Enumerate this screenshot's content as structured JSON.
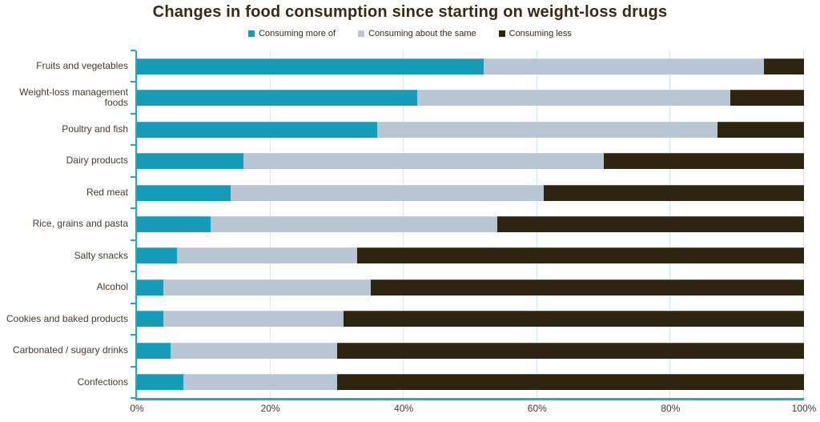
{
  "title": "Changes in food consumption since starting on weight-loss drugs",
  "legend": [
    {
      "label": "Consuming more of",
      "color": "#159cb8"
    },
    {
      "label": "Consuming about the same",
      "color": "#b7c5d4"
    },
    {
      "label": "Consuming less",
      "color": "#2e2410"
    }
  ],
  "colors": {
    "more": "#159cb8",
    "same": "#b7c5d4",
    "less": "#2e2410",
    "axis": "#1ea9c4",
    "gridline": "#c9ecf4",
    "text": "#3a2a12"
  },
  "chart_data": {
    "type": "bar",
    "orientation": "horizontal",
    "stacked": true,
    "title": "Changes in food consumption since starting on weight-loss drugs",
    "categories": [
      "Fruits and vegetables",
      "Weight-loss management foods",
      "Poultry and fish",
      "Dairy products",
      "Red meat",
      "Rice, grains and pasta",
      "Salty snacks",
      "Alcohol",
      "Cookies and baked products",
      "Carbonated / sugary drinks",
      "Confections"
    ],
    "series": [
      {
        "name": "Consuming more of",
        "color": "#159cb8",
        "values": [
          52,
          42,
          36,
          16,
          14,
          11,
          6,
          4,
          4,
          5,
          7
        ]
      },
      {
        "name": "Consuming about the same",
        "color": "#b7c5d4",
        "values": [
          42,
          47,
          51,
          54,
          47,
          43,
          27,
          31,
          27,
          25,
          23
        ]
      },
      {
        "name": "Consuming less",
        "color": "#2e2410",
        "values": [
          6,
          11,
          13,
          30,
          39,
          46,
          67,
          65,
          69,
          70,
          70
        ]
      }
    ],
    "xlabel": "",
    "ylabel": "",
    "xlim": [
      0,
      100
    ],
    "x_ticks": [
      "0%",
      "20%",
      "40%",
      "60%",
      "80%",
      "100%"
    ],
    "x_tick_values": [
      0,
      20,
      40,
      60,
      80,
      100
    ],
    "grid": true,
    "legend_position": "top"
  }
}
